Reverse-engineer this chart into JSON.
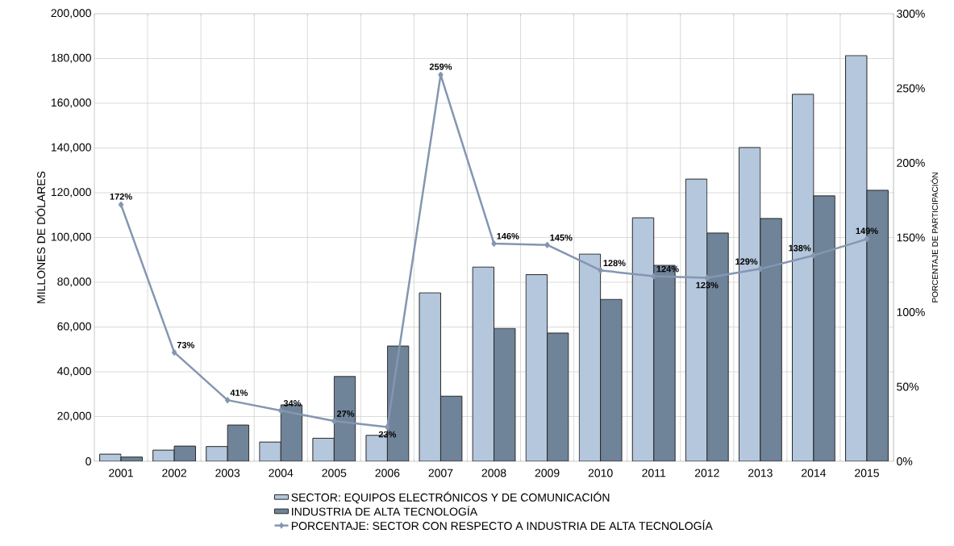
{
  "chart_data": {
    "type": "bar",
    "ylabel": "MILLONES DE DÓLARES",
    "y2label": "PORCENTAJE DE PARTICIPACIÓN",
    "categories": [
      "2001",
      "2002",
      "2003",
      "2004",
      "2005",
      "2006",
      "2007",
      "2008",
      "2009",
      "2010",
      "2011",
      "2012",
      "2013",
      "2014",
      "2015"
    ],
    "ylim": [
      0,
      200000
    ],
    "yticks": [
      {
        "value": 0,
        "label": "0"
      },
      {
        "value": 20000,
        "label": "20,000"
      },
      {
        "value": 40000,
        "label": "40,000"
      },
      {
        "value": 60000,
        "label": "60,000"
      },
      {
        "value": 80000,
        "label": "80,000"
      },
      {
        "value": 100000,
        "label": "100,000"
      },
      {
        "value": 120000,
        "label": "120,000"
      },
      {
        "value": 140000,
        "label": "140,000"
      },
      {
        "value": 160000,
        "label": "160,000"
      },
      {
        "value": 180000,
        "label": "180,000"
      },
      {
        "value": 200000,
        "label": "200,000"
      }
    ],
    "y2lim": [
      0,
      300
    ],
    "y2ticks": [
      {
        "value": 0,
        "label": "0%"
      },
      {
        "value": 50,
        "label": "50%"
      },
      {
        "value": 100,
        "label": "100%"
      },
      {
        "value": 150,
        "label": "150%"
      },
      {
        "value": 200,
        "label": "200%"
      },
      {
        "value": 250,
        "label": "250%"
      },
      {
        "value": 300,
        "label": "300%"
      }
    ],
    "grid": true,
    "legend": "bottom",
    "marker": "diamond",
    "series": [
      {
        "name": "SECTOR: EQUIPOS ELECTRÓNICOS Y DE COMUNICACIÓN",
        "color": "#b4c7dc",
        "values": [
          3200,
          5000,
          6600,
          8600,
          10300,
          11600,
          75300,
          86800,
          83400,
          92600,
          108800,
          126100,
          140200,
          164000,
          181300
        ]
      },
      {
        "name": "INDUSTRIA DE ALTA TECNOLOGÍA",
        "color": "#6f8399",
        "values": [
          1900,
          6800,
          16200,
          25200,
          37900,
          51500,
          29100,
          59400,
          57300,
          72400,
          87600,
          102000,
          108500,
          118600,
          121100
        ]
      },
      {
        "name": "PORCENTAJE: SECTOR CON RESPECTO A INDUSTRIA DE ALTA TECNOLOGÍA",
        "type": "line",
        "axis": "y2",
        "color": "#8496b0",
        "values": [
          172,
          73,
          41,
          34,
          27,
          23,
          259,
          146,
          145,
          128,
          124,
          123,
          129,
          138,
          149
        ],
        "value_labels": [
          "172%",
          "73%",
          "41%",
          "34%",
          "27%",
          "23%",
          "259%",
          "146%",
          "145%",
          "128%",
          "124%",
          "123%",
          "129%",
          "138%",
          "149%"
        ]
      }
    ]
  }
}
